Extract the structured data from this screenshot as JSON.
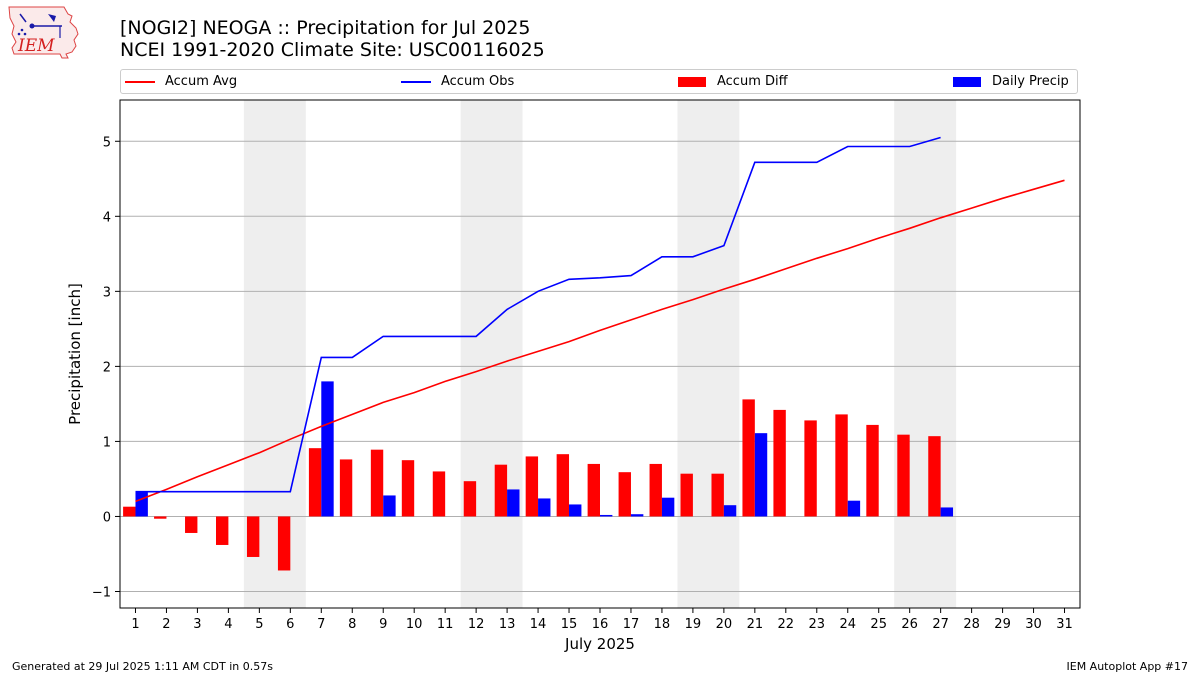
{
  "title_line1": "[NOGI2] NEOGA :: Precipitation for Jul 2025",
  "title_line2": "NCEI 1991-2020 Climate Site: USC00116025",
  "logo": {
    "text": "IEM",
    "icon": "iem-logo-icon"
  },
  "footer_left": "Generated at 29 Jul 2025 1:11 AM CDT in 0.57s",
  "footer_right": "IEM Autoplot App #17",
  "colors": {
    "avg": "#ff0000",
    "obs": "#0000ff",
    "diff": "#ff0000",
    "daily": "#0000ff",
    "weekend": "#eeeeee",
    "grid": "#b0b0b0"
  },
  "chart_data": {
    "type": "bar",
    "xlabel": "July 2025",
    "ylabel": "Precipitation [inch]",
    "ylim": [
      -1.22,
      5.55
    ],
    "yticks": [
      -1,
      0,
      1,
      2,
      3,
      4,
      5
    ],
    "x": [
      1,
      2,
      3,
      4,
      5,
      6,
      7,
      8,
      9,
      10,
      11,
      12,
      13,
      14,
      15,
      16,
      17,
      18,
      19,
      20,
      21,
      22,
      23,
      24,
      25,
      26,
      27,
      28,
      29,
      30,
      31
    ],
    "xlim": [
      0.5,
      31.5
    ],
    "grid": "y",
    "legend": {
      "placement": "top",
      "entries": [
        "Accum Avg",
        "Accum Obs",
        "Accum Diff",
        "Daily Precip"
      ]
    },
    "weekend_shading": [
      [
        4.5,
        6.5
      ],
      [
        11.5,
        13.5
      ],
      [
        18.5,
        20.5
      ],
      [
        25.5,
        27.5
      ]
    ],
    "series": [
      {
        "name": "Accum Avg",
        "type": "line",
        "color": "#ff0000",
        "x": [
          1,
          2,
          3,
          4,
          5,
          6,
          7,
          8,
          9,
          10,
          11,
          12,
          13,
          14,
          15,
          16,
          17,
          18,
          19,
          20,
          21,
          22,
          23,
          24,
          25,
          26,
          27,
          28,
          29,
          30,
          31
        ],
        "values": [
          0.2,
          0.36,
          0.53,
          0.69,
          0.85,
          1.03,
          1.2,
          1.36,
          1.52,
          1.65,
          1.8,
          1.93,
          2.07,
          2.2,
          2.33,
          2.48,
          2.62,
          2.76,
          2.89,
          3.03,
          3.16,
          3.3,
          3.44,
          3.57,
          3.71,
          3.84,
          3.98,
          4.11,
          4.24,
          4.36,
          4.48
        ]
      },
      {
        "name": "Accum Obs",
        "type": "line",
        "color": "#0000ff",
        "x": [
          1,
          2,
          3,
          4,
          5,
          6,
          7,
          8,
          9,
          10,
          11,
          12,
          13,
          14,
          15,
          16,
          17,
          18,
          19,
          20,
          21,
          22,
          23,
          24,
          25,
          26,
          27
        ],
        "values": [
          0.33,
          0.33,
          0.33,
          0.33,
          0.33,
          0.33,
          2.12,
          2.12,
          2.4,
          2.4,
          2.4,
          2.4,
          2.76,
          3.0,
          3.16,
          3.18,
          3.21,
          3.46,
          3.46,
          3.61,
          4.72,
          4.72,
          4.72,
          4.93,
          4.93,
          4.93,
          5.05
        ]
      },
      {
        "name": "Accum Diff",
        "type": "bar",
        "color": "#ff0000",
        "x": [
          1,
          2,
          3,
          4,
          5,
          6,
          7,
          8,
          9,
          10,
          11,
          12,
          13,
          14,
          15,
          16,
          17,
          18,
          19,
          20,
          21,
          22,
          23,
          24,
          25,
          26,
          27
        ],
        "values": [
          0.13,
          -0.03,
          -0.22,
          -0.38,
          -0.54,
          -0.72,
          0.91,
          0.76,
          0.89,
          0.75,
          0.6,
          0.47,
          0.69,
          0.8,
          0.83,
          0.7,
          0.59,
          0.7,
          0.57,
          0.57,
          1.56,
          1.42,
          1.28,
          1.36,
          1.22,
          1.09,
          1.07
        ]
      },
      {
        "name": "Daily Precip",
        "type": "bar",
        "color": "#0000ff",
        "x": [
          1,
          2,
          3,
          4,
          5,
          6,
          7,
          8,
          9,
          10,
          11,
          12,
          13,
          14,
          15,
          16,
          17,
          18,
          19,
          20,
          21,
          22,
          23,
          24,
          25,
          26,
          27
        ],
        "values": [
          0.33,
          0,
          0,
          0,
          0,
          0,
          1.8,
          0,
          0.28,
          0,
          0,
          0,
          0.36,
          0.24,
          0.16,
          0.02,
          0.03,
          0.25,
          0,
          0.15,
          1.11,
          0,
          0,
          0.21,
          0,
          0,
          0.12
        ]
      }
    ]
  }
}
